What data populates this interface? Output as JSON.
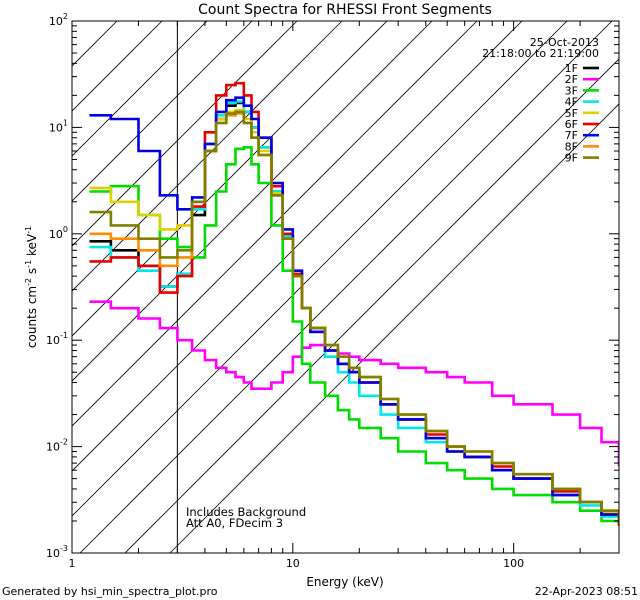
{
  "chart_data": {
    "type": "line",
    "title": "Count Spectra for RHESSI Front Segments",
    "xlabel": "Energy (keV)",
    "ylabel_parts": [
      "counts cm",
      "-2",
      " s",
      "-1",
      " keV",
      "-1"
    ],
    "xscale": "log",
    "yscale": "log",
    "xlim": [
      1,
      300
    ],
    "ylim": [
      0.001,
      100
    ],
    "x_ticks": [
      {
        "value": 1,
        "label": "1"
      },
      {
        "value": 10,
        "label": "10"
      },
      {
        "value": 100,
        "label": "100"
      }
    ],
    "y_ticks": [
      {
        "value": 0.001,
        "base": "10",
        "exp": "-3"
      },
      {
        "value": 0.01,
        "base": "10",
        "exp": "-2"
      },
      {
        "value": 0.1,
        "base": "10",
        "exp": "-1"
      },
      {
        "value": 1,
        "base": "10",
        "exp": "0"
      },
      {
        "value": 10,
        "base": "10",
        "exp": "1"
      },
      {
        "value": 100,
        "base": "10",
        "exp": "2"
      }
    ],
    "hatched_region_keV": [
      1,
      3
    ],
    "legend": {
      "date": "25-Oct-2013",
      "time_range": "21:18:00 to 21:19:00",
      "position": "top-right"
    },
    "annotations": [
      "Includes Background",
      "Att A0, FDecim 3"
    ],
    "energy_keV": [
      1.2,
      1.5,
      2,
      2.5,
      3,
      3.5,
      4,
      4.5,
      5,
      5.5,
      6,
      6.5,
      7,
      8,
      9,
      10,
      11,
      12,
      14,
      16,
      18,
      20,
      25,
      30,
      40,
      50,
      60,
      80,
      100,
      150,
      200,
      250,
      300
    ],
    "series": [
      {
        "name": "1F",
        "color": "#000000",
        "values": [
          0.85,
          0.7,
          0.5,
          0.32,
          0.42,
          1.5,
          6,
          12,
          16,
          17,
          14,
          10,
          6.5,
          2.5,
          0.9,
          0.4,
          0.2,
          0.13,
          0.08,
          0.06,
          0.05,
          0.04,
          0.025,
          0.018,
          0.012,
          0.009,
          0.008,
          0.006,
          0.005,
          0.0035,
          0.003,
          0.0023,
          0.002
        ]
      },
      {
        "name": "2F",
        "color": "#ff00ff",
        "values": [
          0.23,
          0.2,
          0.16,
          0.13,
          0.1,
          0.08,
          0.065,
          0.055,
          0.05,
          0.045,
          0.04,
          0.035,
          0.035,
          0.04,
          0.05,
          0.07,
          0.085,
          0.09,
          0.08,
          0.075,
          0.07,
          0.065,
          0.06,
          0.055,
          0.05,
          0.045,
          0.04,
          0.03,
          0.025,
          0.02,
          0.015,
          0.011,
          0.0065
        ]
      },
      {
        "name": "3F",
        "color": "#00dd00",
        "values": [
          2.5,
          2.8,
          1.5,
          0.9,
          0.75,
          0.6,
          1.2,
          2.5,
          4.5,
          6.3,
          6.5,
          4.5,
          3,
          1.2,
          0.45,
          0.15,
          0.06,
          0.04,
          0.03,
          0.022,
          0.018,
          0.015,
          0.012,
          0.009,
          0.007,
          0.006,
          0.005,
          0.004,
          0.0035,
          0.003,
          0.0025,
          0.002,
          0.0018
        ]
      },
      {
        "name": "4F",
        "color": "#00e8e8",
        "values": [
          0.75,
          0.6,
          0.45,
          0.32,
          0.42,
          1.7,
          7,
          13,
          17,
          17.5,
          14,
          10,
          6.5,
          2.5,
          0.95,
          0.4,
          0.2,
          0.12,
          0.07,
          0.05,
          0.04,
          0.03,
          0.02,
          0.015,
          0.011,
          0.009,
          0.008,
          0.006,
          0.005,
          0.0035,
          0.0028,
          0.0022,
          0.002
        ]
      },
      {
        "name": "5F",
        "color": "#e0d000",
        "values": [
          2.7,
          2.0,
          1.5,
          1.1,
          1.2,
          2.0,
          7,
          12,
          14,
          14.5,
          12,
          9,
          6,
          2.4,
          0.9,
          0.4,
          0.2,
          0.12,
          0.08,
          0.06,
          0.05,
          0.04,
          0.025,
          0.018,
          0.012,
          0.009,
          0.008,
          0.006,
          0.005,
          0.0038,
          0.003,
          0.0024,
          0.0022
        ]
      },
      {
        "name": "6F",
        "color": "#e80000",
        "values": [
          0.55,
          0.6,
          0.5,
          0.28,
          0.4,
          1.8,
          9,
          20,
          25,
          26,
          20,
          14,
          8,
          2.8,
          1.0,
          0.42,
          0.2,
          0.12,
          0.08,
          0.06,
          0.05,
          0.04,
          0.025,
          0.018,
          0.013,
          0.01,
          0.008,
          0.0065,
          0.005,
          0.0038,
          0.003,
          0.0023,
          0.0018
        ]
      },
      {
        "name": "7F",
        "color": "#0000e0",
        "values": [
          13,
          12,
          6,
          2.3,
          1.7,
          2.2,
          7,
          14,
          18,
          19,
          16,
          12,
          8,
          3,
          1.1,
          0.45,
          0.2,
          0.12,
          0.08,
          0.06,
          0.05,
          0.04,
          0.025,
          0.018,
          0.012,
          0.009,
          0.008,
          0.006,
          0.005,
          0.0035,
          0.003,
          0.0023,
          0.002
        ]
      },
      {
        "name": "8F",
        "color": "#ff8c00",
        "values": [
          1.0,
          0.9,
          0.7,
          0.5,
          0.6,
          2.0,
          6,
          11,
          13,
          13.5,
          11,
          8,
          5.5,
          2.3,
          0.9,
          0.4,
          0.2,
          0.13,
          0.09,
          0.07,
          0.055,
          0.045,
          0.028,
          0.02,
          0.014,
          0.01,
          0.009,
          0.007,
          0.0055,
          0.004,
          0.003,
          0.0025,
          0.002
        ]
      },
      {
        "name": "9F",
        "color": "#808000",
        "values": [
          1.6,
          1.2,
          0.9,
          0.6,
          0.7,
          2.0,
          6,
          11,
          13.5,
          14,
          11,
          8,
          5.5,
          2.3,
          0.9,
          0.4,
          0.2,
          0.13,
          0.09,
          0.07,
          0.055,
          0.045,
          0.028,
          0.02,
          0.014,
          0.01,
          0.009,
          0.007,
          0.0055,
          0.004,
          0.003,
          0.0025,
          0.002
        ]
      }
    ]
  },
  "footer": {
    "generated_by": "Generated by hsi_min_spectra_plot.pro",
    "timestamp": "22-Apr-2023 08:51"
  }
}
